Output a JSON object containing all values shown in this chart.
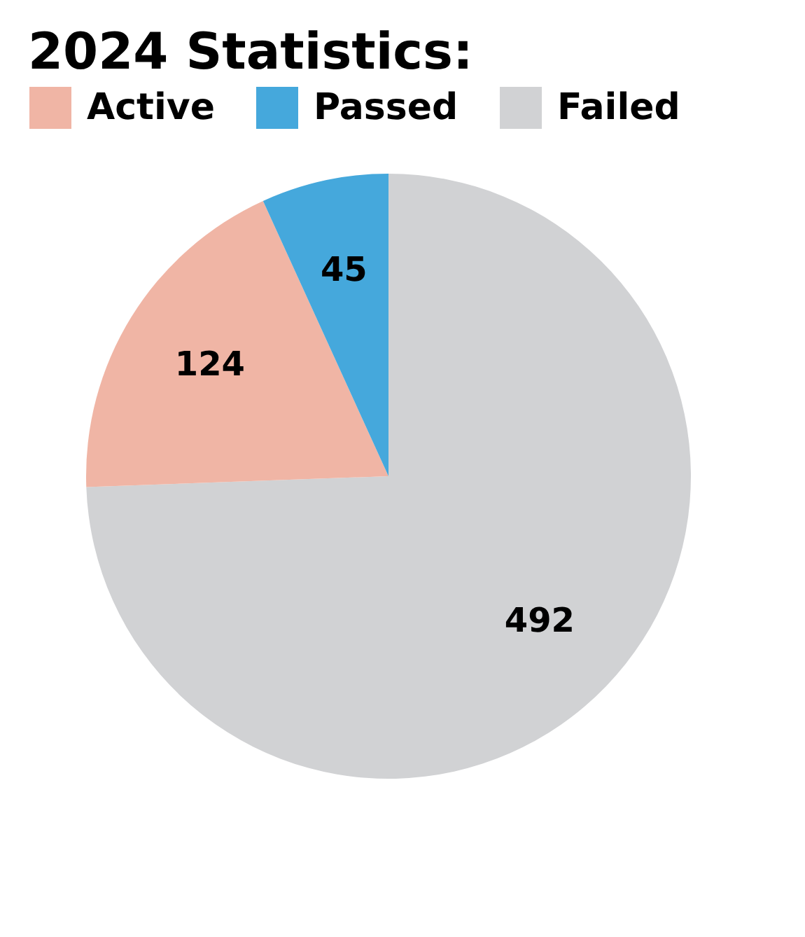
{
  "chart_data": {
    "type": "pie",
    "title": "2024 Statistics:",
    "categories": [
      "Failed",
      "Active",
      "Passed"
    ],
    "values": [
      492,
      124,
      45
    ],
    "colors": [
      "#d1d2d4",
      "#f0b5a5",
      "#45a8dc"
    ],
    "legend": "top",
    "data_labels": true
  }
}
